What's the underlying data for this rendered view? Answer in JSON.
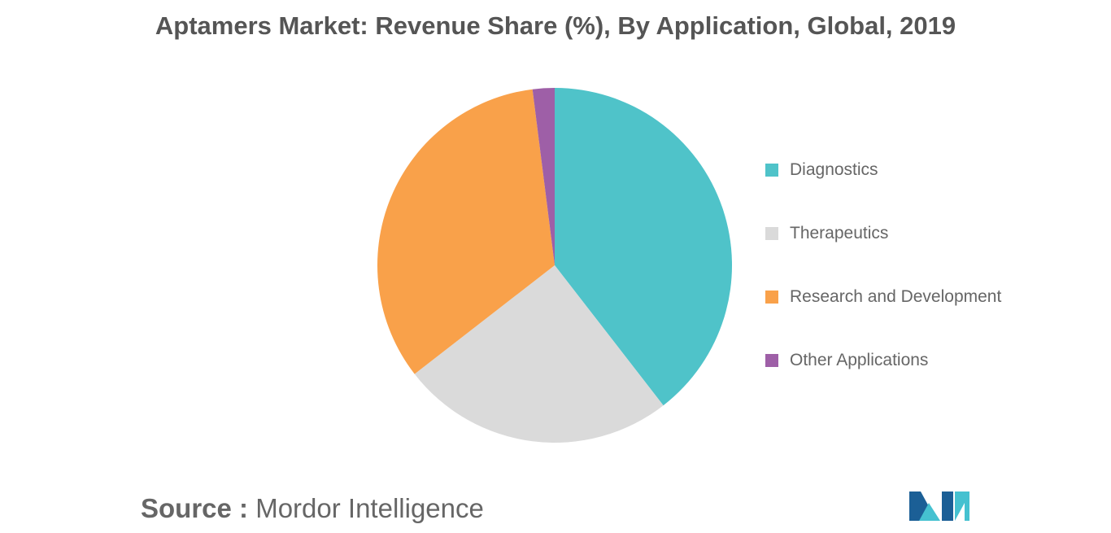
{
  "chart_data": {
    "type": "pie",
    "title": "Aptamers Market: Revenue Share (%), By Application, Global, 2019",
    "legend_position": "right",
    "series": [
      {
        "name": "Diagnostics",
        "value": 39.5,
        "color": "#4fc3c9"
      },
      {
        "name": "Therapeutics",
        "value": 25.0,
        "color": "#dadada"
      },
      {
        "name": "Research and Development",
        "value": 33.5,
        "color": "#f9a14a"
      },
      {
        "name": "Other Applications",
        "value": 2.0,
        "color": "#9e5fa7"
      }
    ]
  },
  "source": {
    "prefix": "Source :",
    "name": "Mordor Intelligence"
  },
  "logo": {
    "icon": "mordor-intelligence-logo-icon",
    "colors": [
      "#1b5f96",
      "#45c1d0"
    ]
  }
}
